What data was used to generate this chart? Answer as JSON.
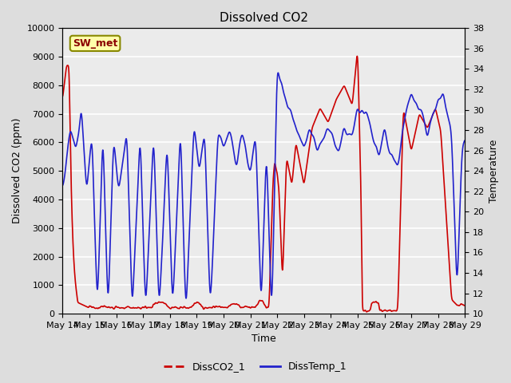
{
  "title": "Dissolved CO2",
  "xlabel": "Time",
  "ylabel_left": "Dissolved CO2 (ppm)",
  "ylabel_right": "Temperature",
  "legend_label1": "DissCO2_1",
  "legend_label2": "DissTemp_1",
  "station_label": "SW_met",
  "ylim_left": [
    0,
    10000
  ],
  "ylim_right": [
    10,
    38
  ],
  "yticks_left": [
    0,
    1000,
    2000,
    3000,
    4000,
    5000,
    6000,
    7000,
    8000,
    9000,
    10000
  ],
  "yticks_right": [
    10,
    12,
    14,
    16,
    18,
    20,
    22,
    24,
    26,
    28,
    30,
    32,
    34,
    36,
    38
  ],
  "xtick_labels": [
    "May 14",
    "May 15",
    "May 16",
    "May 17",
    "May 18",
    "May 19",
    "May 20",
    "May 21",
    "May 22",
    "May 23",
    "May 24",
    "May 25",
    "May 26",
    "May 27",
    "May 28",
    "May 29"
  ],
  "bg_color": "#dddddd",
  "plot_bg_color": "#ebebeb",
  "line1_color": "#cc0000",
  "line2_color": "#2222cc",
  "line_width": 1.2,
  "grid_color": "#ffffff"
}
